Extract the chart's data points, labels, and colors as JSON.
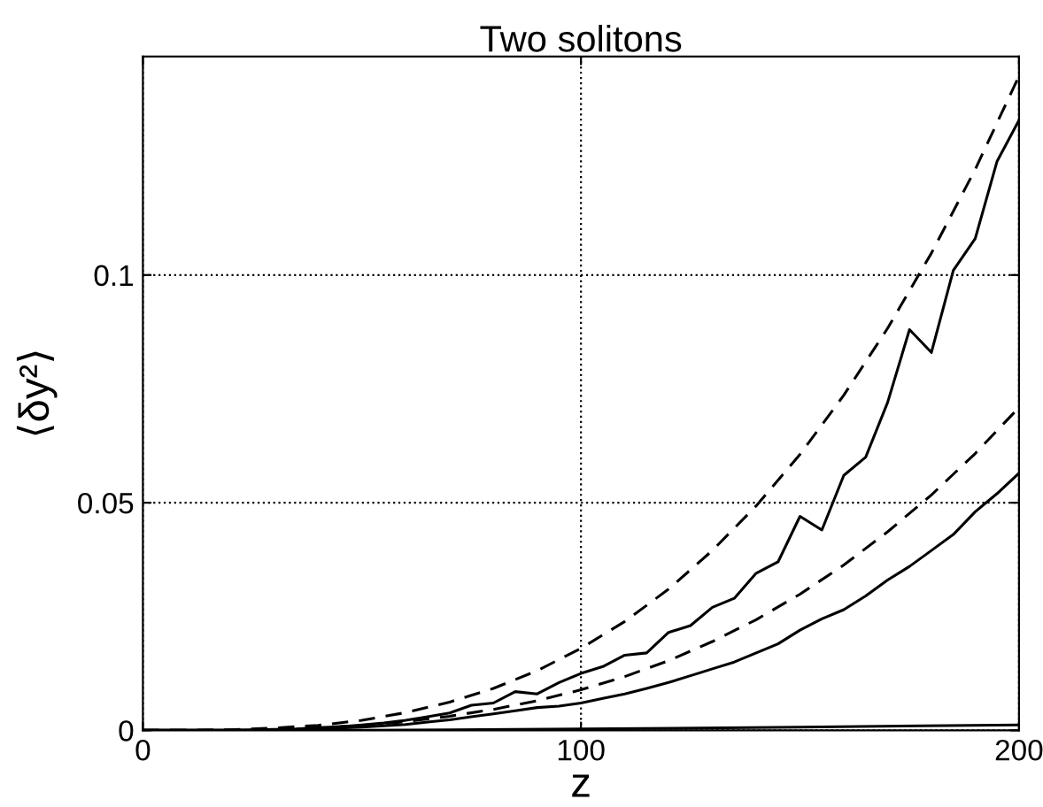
{
  "chart_data": {
    "type": "line",
    "title": "Two solitons",
    "xlabel": "z",
    "ylabel": "⟨δy²⟩",
    "xlim": [
      0,
      200
    ],
    "ylim": [
      0,
      0.148
    ],
    "xticks": [
      0,
      100,
      200
    ],
    "yticks": [
      0,
      0.05,
      0.1
    ],
    "grid": true,
    "marker": "none",
    "series": [
      {
        "color": "#000000",
        "line_style": "dashed",
        "x": [
          0,
          10,
          20,
          30,
          40,
          50,
          60,
          70,
          80,
          90,
          100,
          110,
          120,
          130,
          140,
          150,
          160,
          170,
          180,
          190,
          200
        ],
        "values": [
          0,
          0,
          0.0001,
          0.0005,
          0.0011,
          0.0022,
          0.0039,
          0.0062,
          0.0092,
          0.0131,
          0.018,
          0.0239,
          0.031,
          0.0395,
          0.0493,
          0.0606,
          0.0736,
          0.0883,
          0.1048,
          0.1232,
          0.1437
        ]
      },
      {
        "color": "#000000",
        "line_style": "dashed",
        "x": [
          0,
          10,
          20,
          30,
          40,
          50,
          60,
          70,
          80,
          90,
          100,
          110,
          120,
          130,
          140,
          150,
          160,
          170,
          180,
          190,
          200
        ],
        "values": [
          0,
          0,
          0.0001,
          0.0002,
          0.0006,
          0.0011,
          0.0019,
          0.0031,
          0.0046,
          0.0065,
          0.0089,
          0.0118,
          0.0153,
          0.0195,
          0.0243,
          0.0299,
          0.0363,
          0.0436,
          0.0517,
          0.0608,
          0.0709
        ]
      },
      {
        "color": "#000000",
        "line_style": "solid",
        "x": [
          0,
          5,
          10,
          15,
          20,
          25,
          30,
          35,
          40,
          45,
          50,
          55,
          60,
          65,
          70,
          75,
          80,
          85,
          90,
          95,
          100,
          105,
          110,
          115,
          120,
          125,
          130,
          135,
          140,
          145,
          150,
          155,
          160,
          165,
          170,
          175,
          180,
          185,
          190,
          195,
          200
        ],
        "values": [
          0,
          0,
          0,
          0,
          0,
          0.0001,
          0.0002,
          0.0003,
          0.0006,
          0.0008,
          0.0012,
          0.0016,
          0.0022,
          0.003,
          0.0038,
          0.0055,
          0.006,
          0.0085,
          0.008,
          0.0105,
          0.0125,
          0.014,
          0.0165,
          0.017,
          0.0215,
          0.023,
          0.027,
          0.029,
          0.0345,
          0.037,
          0.047,
          0.044,
          0.056,
          0.06,
          0.072,
          0.088,
          0.083,
          0.101,
          0.108,
          0.125,
          0.134
        ]
      },
      {
        "color": "#000000",
        "line_style": "solid",
        "x": [
          0,
          5,
          10,
          15,
          20,
          25,
          30,
          35,
          40,
          45,
          50,
          55,
          60,
          65,
          70,
          75,
          80,
          85,
          90,
          95,
          100,
          105,
          110,
          115,
          120,
          125,
          130,
          135,
          140,
          145,
          150,
          155,
          160,
          165,
          170,
          175,
          180,
          185,
          190,
          195,
          200
        ],
        "values": [
          0,
          0,
          0,
          0,
          0,
          0,
          0.0001,
          0.0002,
          0.0003,
          0.0005,
          0.0007,
          0.001,
          0.0013,
          0.0018,
          0.0023,
          0.003,
          0.0036,
          0.0043,
          0.005,
          0.0053,
          0.006,
          0.007,
          0.008,
          0.0092,
          0.0105,
          0.012,
          0.0135,
          0.015,
          0.017,
          0.019,
          0.022,
          0.0245,
          0.0265,
          0.0295,
          0.033,
          0.036,
          0.0395,
          0.043,
          0.048,
          0.052,
          0.0565
        ]
      },
      {
        "color": "#000000",
        "line_style": "solid",
        "x": [
          0,
          50,
          100,
          150,
          200
        ],
        "values": [
          0,
          0,
          0.0003,
          0.0007,
          0.0012
        ]
      }
    ]
  }
}
